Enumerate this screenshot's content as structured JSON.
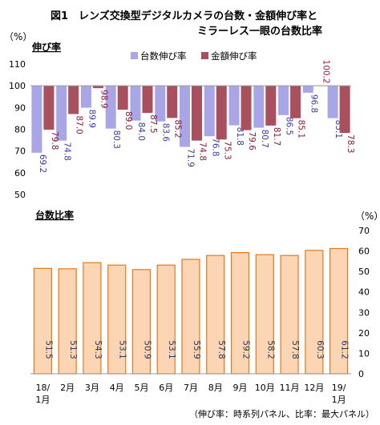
{
  "figure": {
    "title_line1": "図1　レンズ交換型デジタルカメラの台数・金額伸び率と",
    "title_line2": "ミラーレス一眼の台数比率",
    "footnote": "（伸び率：時系列パネル、比率：最大パネル）"
  },
  "chart_data": [
    {
      "type": "bar",
      "title": "伸び率",
      "ylabel": "（%）",
      "ylim": [
        50,
        110
      ],
      "yticks": [
        50,
        60,
        70,
        80,
        90,
        100,
        110
      ],
      "baseline": 100,
      "categories": [
        "18/1月",
        "2月",
        "3月",
        "4月",
        "5月",
        "6月",
        "7月",
        "8月",
        "9月",
        "10月",
        "11月",
        "12月",
        "19/1月"
      ],
      "series": [
        {
          "name": "台数伸び率",
          "color": "#a9a6e8",
          "label_color": "#3a3aa0",
          "values": [
            69.2,
            74.8,
            89.9,
            80.3,
            84.0,
            83.6,
            71.9,
            76.8,
            81.8,
            80.7,
            86.5,
            96.8,
            85.1
          ]
        },
        {
          "name": "金額伸び率",
          "color": "#a8505e",
          "label_color": "#8b1a3a",
          "values": [
            79.8,
            87.0,
            98.9,
            89.0,
            87.5,
            85.2,
            74.8,
            75.3,
            79.6,
            81.7,
            85.1,
            100.2,
            78.3
          ]
        }
      ],
      "grid": false,
      "legend": "top-center"
    },
    {
      "type": "bar",
      "title": "台数比率",
      "ylabel": "（%）",
      "ylim": [
        0,
        70
      ],
      "yticks": [
        0,
        10,
        20,
        30,
        40,
        50,
        60,
        70
      ],
      "categories": [
        "18/1月",
        "2月",
        "3月",
        "4月",
        "5月",
        "6月",
        "7月",
        "8月",
        "9月",
        "10月",
        "11月",
        "12月",
        "19/1月"
      ],
      "x_labels": [
        [
          "18/",
          "1月"
        ],
        [
          "2月"
        ],
        [
          "3月"
        ],
        [
          "4月"
        ],
        [
          "5月"
        ],
        [
          "6月"
        ],
        [
          "7月"
        ],
        [
          "8月"
        ],
        [
          "9月"
        ],
        [
          "10月"
        ],
        [
          "11月"
        ],
        [
          "12月"
        ],
        [
          "19/",
          "1月"
        ]
      ],
      "series": [
        {
          "color": "#fcd5b4",
          "stroke": "#e07b1a",
          "label_color": "#1f3a5f",
          "values": [
            51.5,
            51.3,
            54.3,
            53.1,
            50.9,
            53.1,
            55.9,
            57.8,
            59.2,
            58.2,
            57.8,
            60.3,
            61.2
          ]
        }
      ],
      "grid": false
    }
  ]
}
